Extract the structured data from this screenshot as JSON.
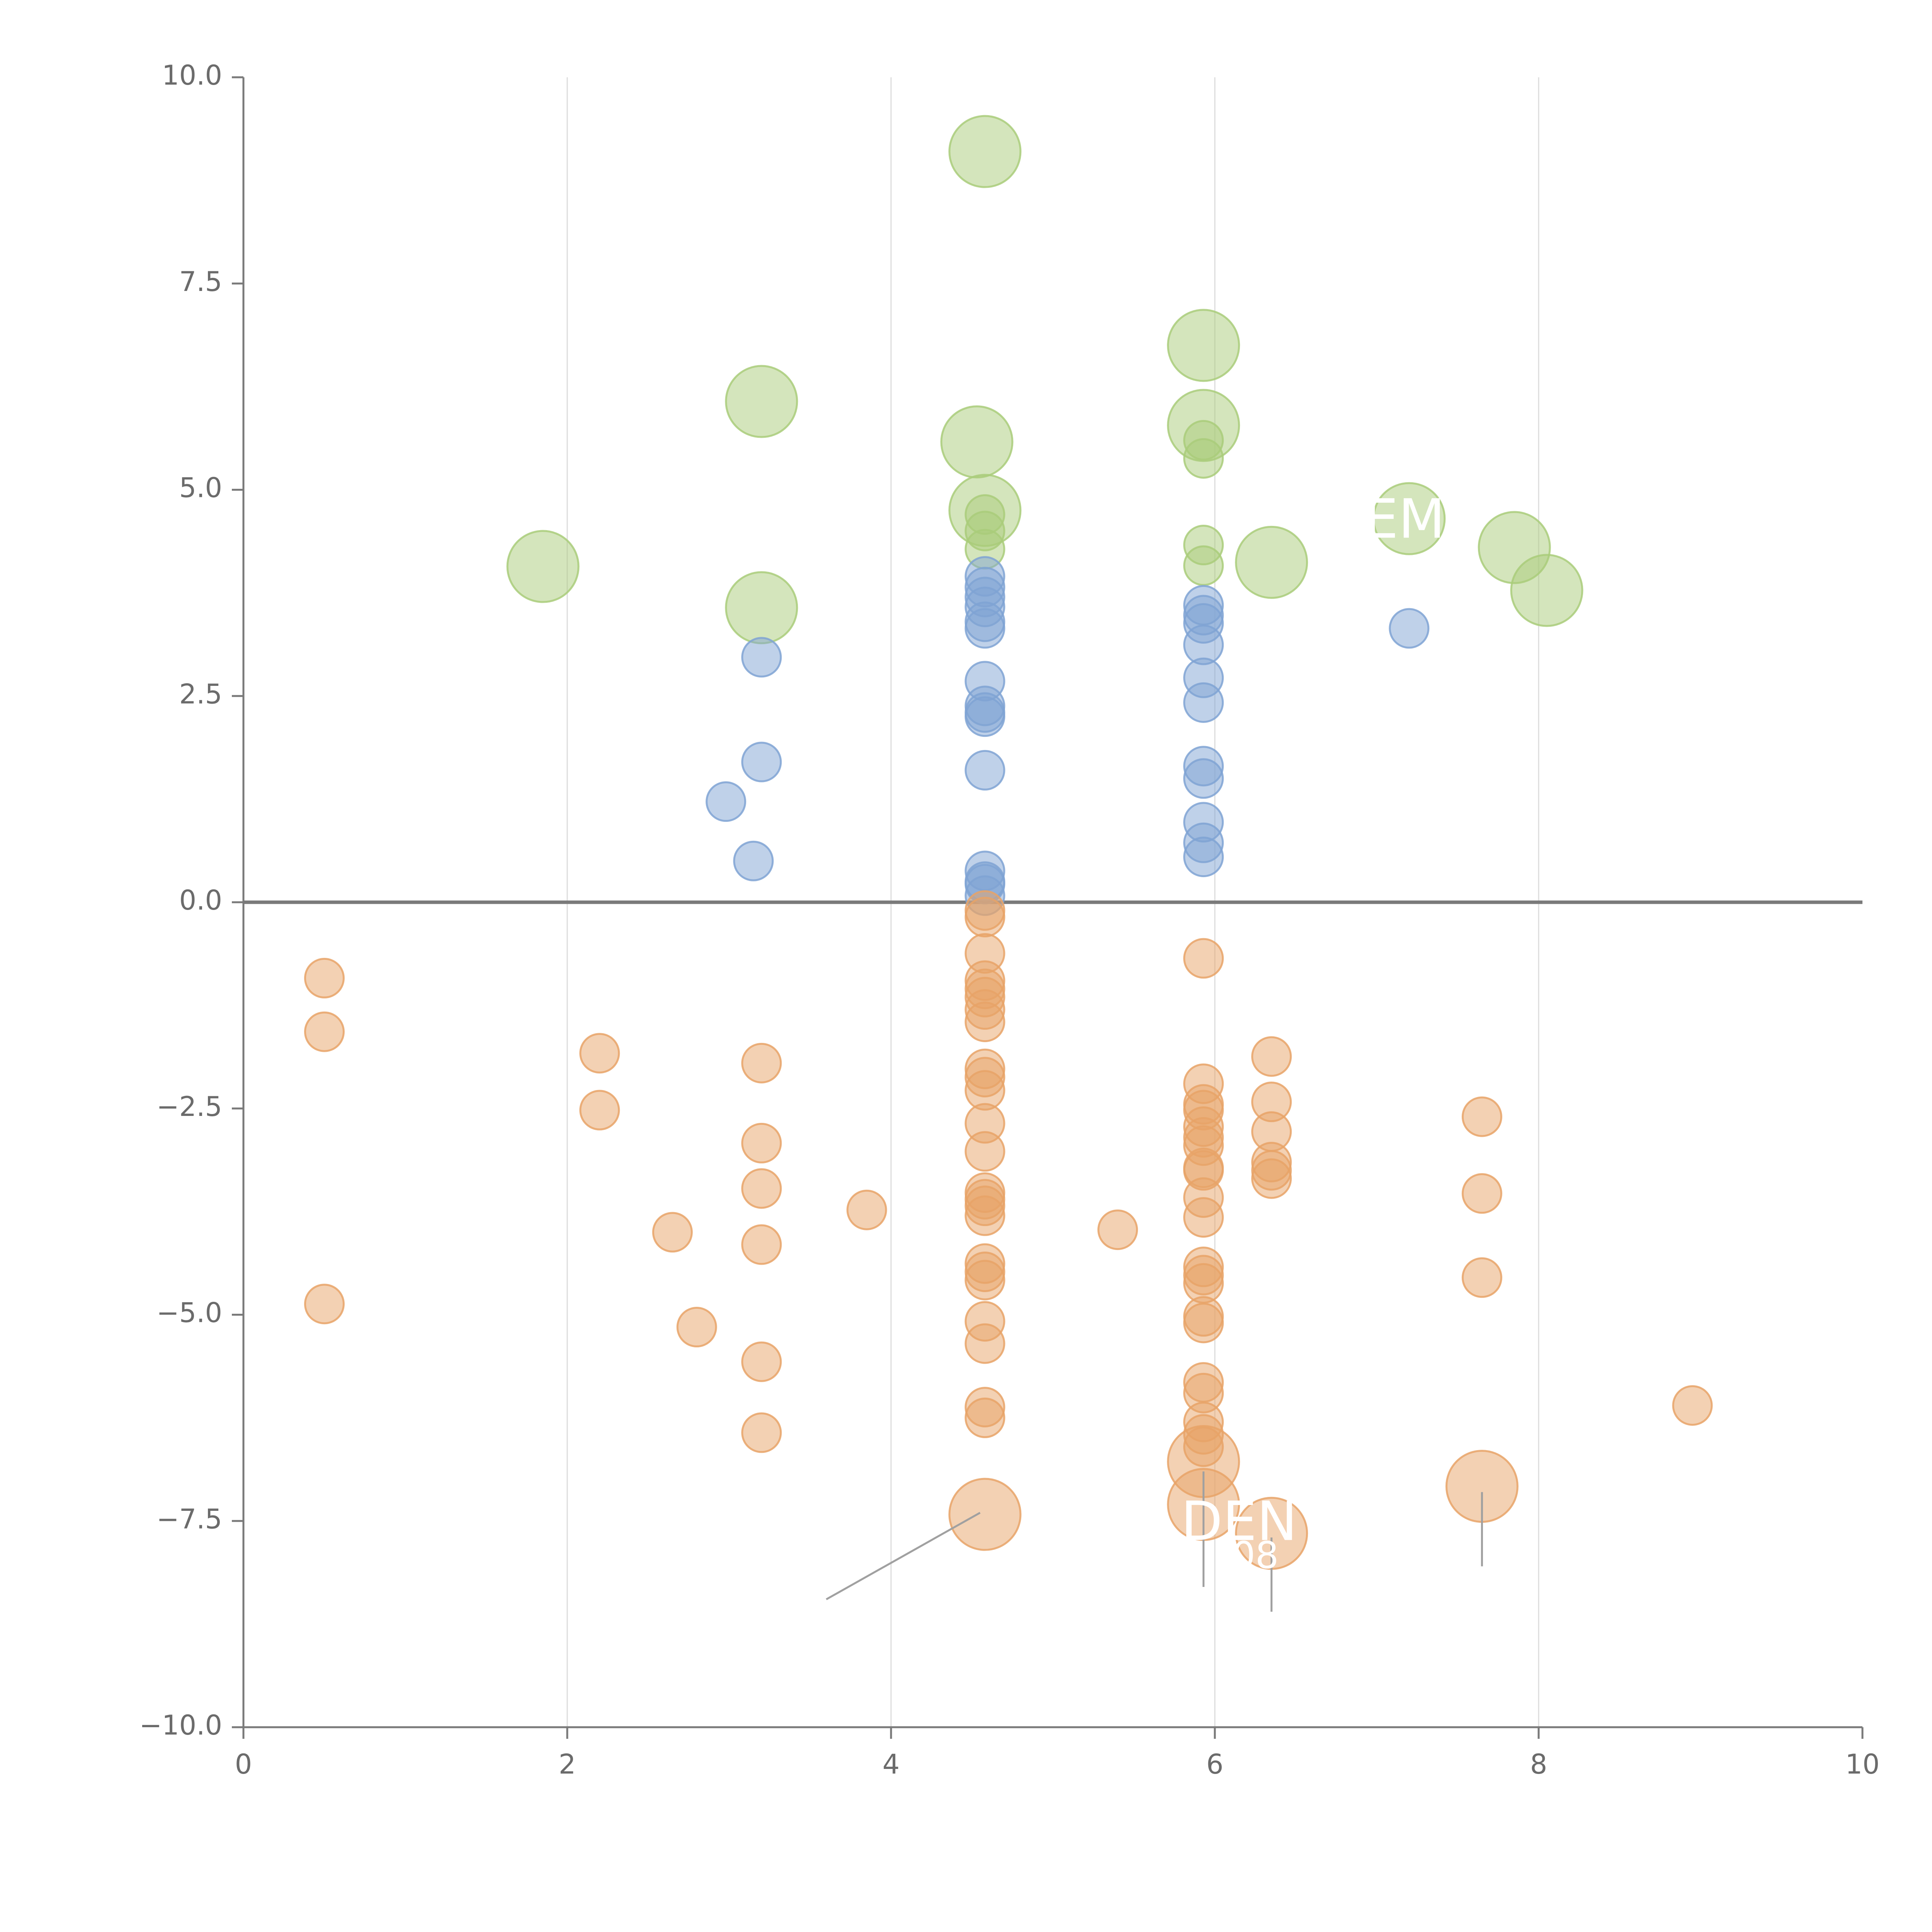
{
  "chart_data": {
    "type": "scatter",
    "title": "",
    "xlabel": "",
    "ylabel": "",
    "xlim": [
      0,
      10
    ],
    "ylim": [
      -10,
      10
    ],
    "x_ticks": [
      "0",
      "2",
      "4",
      "6",
      "8",
      "10"
    ],
    "y_ticks": [
      "10.0",
      "7.5",
      "5.0",
      "2.5",
      "0.0",
      "−2.5",
      "−5.0",
      "−7.5",
      "−10.0"
    ],
    "x_gridlines": [
      2,
      4,
      6,
      8
    ],
    "reference_line_y": 0,
    "colors": {
      "green": "#a9cc7a",
      "blue": "#7fa3d3",
      "orange": "#e8a367",
      "axis": "#7a7a7a",
      "grid": "#dcdcdc"
    },
    "series": [
      {
        "name": "green",
        "color": "#a9cc7a",
        "points": [
          {
            "x": 4.58,
            "y": 9.1,
            "s": "L"
          },
          {
            "x": 5.93,
            "y": 6.75,
            "s": "L"
          },
          {
            "x": 3.2,
            "y": 6.07,
            "s": "L"
          },
          {
            "x": 5.93,
            "y": 5.78,
            "s": "L"
          },
          {
            "x": 4.53,
            "y": 5.58,
            "s": "L"
          },
          {
            "x": 5.93,
            "y": 5.6,
            "s": "S"
          },
          {
            "x": 5.93,
            "y": 5.38,
            "s": "S"
          },
          {
            "x": 4.58,
            "y": 4.75,
            "s": "L"
          },
          {
            "x": 4.58,
            "y": 4.7,
            "s": "S"
          },
          {
            "x": 4.58,
            "y": 4.5,
            "s": "S"
          },
          {
            "x": 4.58,
            "y": 4.28,
            "s": "S"
          },
          {
            "x": 5.93,
            "y": 4.33,
            "s": "S"
          },
          {
            "x": 5.93,
            "y": 4.08,
            "s": "S"
          },
          {
            "x": 7.2,
            "y": 4.65,
            "s": "L"
          },
          {
            "x": 7.85,
            "y": 4.3,
            "s": "L"
          },
          {
            "x": 6.35,
            "y": 4.12,
            "s": "L"
          },
          {
            "x": 1.85,
            "y": 4.07,
            "s": "L"
          },
          {
            "x": 8.05,
            "y": 3.78,
            "s": "L"
          },
          {
            "x": 3.2,
            "y": 3.57,
            "s": "L"
          }
        ]
      },
      {
        "name": "blue",
        "color": "#7fa3d3",
        "points": [
          {
            "x": 4.58,
            "y": 3.95,
            "s": "S"
          },
          {
            "x": 4.58,
            "y": 3.82,
            "s": "S"
          },
          {
            "x": 4.58,
            "y": 3.7,
            "s": "S"
          },
          {
            "x": 4.58,
            "y": 3.58,
            "s": "S"
          },
          {
            "x": 4.58,
            "y": 3.4,
            "s": "S"
          },
          {
            "x": 4.58,
            "y": 3.32,
            "s": "S"
          },
          {
            "x": 5.93,
            "y": 3.6,
            "s": "S"
          },
          {
            "x": 5.93,
            "y": 3.48,
            "s": "S"
          },
          {
            "x": 5.93,
            "y": 3.38,
            "s": "S"
          },
          {
            "x": 5.93,
            "y": 3.12,
            "s": "S"
          },
          {
            "x": 5.93,
            "y": 2.72,
            "s": "S"
          },
          {
            "x": 5.93,
            "y": 2.42,
            "s": "S"
          },
          {
            "x": 7.2,
            "y": 3.32,
            "s": "S"
          },
          {
            "x": 3.2,
            "y": 2.97,
            "s": "S"
          },
          {
            "x": 4.58,
            "y": 2.68,
            "s": "S"
          },
          {
            "x": 4.58,
            "y": 2.38,
            "s": "S"
          },
          {
            "x": 4.58,
            "y": 2.3,
            "s": "S"
          },
          {
            "x": 4.58,
            "y": 2.25,
            "s": "S"
          },
          {
            "x": 3.2,
            "y": 1.7,
            "s": "S"
          },
          {
            "x": 4.58,
            "y": 1.6,
            "s": "S"
          },
          {
            "x": 5.93,
            "y": 1.65,
            "s": "S"
          },
          {
            "x": 5.93,
            "y": 1.5,
            "s": "S"
          },
          {
            "x": 2.98,
            "y": 1.22,
            "s": "S"
          },
          {
            "x": 5.93,
            "y": 0.97,
            "s": "S"
          },
          {
            "x": 5.93,
            "y": 0.72,
            "s": "S"
          },
          {
            "x": 5.93,
            "y": 0.55,
            "s": "S"
          },
          {
            "x": 3.15,
            "y": 0.5,
            "s": "S"
          },
          {
            "x": 4.58,
            "y": 0.38,
            "s": "S"
          },
          {
            "x": 4.58,
            "y": 0.25,
            "s": "S"
          },
          {
            "x": 4.58,
            "y": 0.22,
            "s": "S"
          },
          {
            "x": 4.58,
            "y": 0.08,
            "s": "S"
          }
        ]
      },
      {
        "name": "orange",
        "color": "#e8a367",
        "points": [
          {
            "x": 4.58,
            "y": -0.1,
            "s": "S"
          },
          {
            "x": 4.58,
            "y": -0.18,
            "s": "S"
          },
          {
            "x": 4.58,
            "y": -0.62,
            "s": "S"
          },
          {
            "x": 5.93,
            "y": -0.68,
            "s": "S"
          },
          {
            "x": 0.5,
            "y": -0.92,
            "s": "S"
          },
          {
            "x": 4.58,
            "y": -0.95,
            "s": "S"
          },
          {
            "x": 4.58,
            "y": -1.05,
            "s": "S"
          },
          {
            "x": 4.58,
            "y": -1.15,
            "s": "S"
          },
          {
            "x": 4.58,
            "y": -1.3,
            "s": "S"
          },
          {
            "x": 4.58,
            "y": -1.45,
            "s": "S"
          },
          {
            "x": 0.5,
            "y": -1.57,
            "s": "S"
          },
          {
            "x": 2.2,
            "y": -1.83,
            "s": "S"
          },
          {
            "x": 6.35,
            "y": -1.87,
            "s": "S"
          },
          {
            "x": 3.2,
            "y": -1.95,
            "s": "S"
          },
          {
            "x": 4.58,
            "y": -2.02,
            "s": "S"
          },
          {
            "x": 4.58,
            "y": -2.12,
            "s": "S"
          },
          {
            "x": 4.58,
            "y": -2.28,
            "s": "S"
          },
          {
            "x": 5.93,
            "y": -2.2,
            "s": "S"
          },
          {
            "x": 5.93,
            "y": -2.45,
            "s": "S"
          },
          {
            "x": 5.93,
            "y": -2.52,
            "s": "S"
          },
          {
            "x": 5.93,
            "y": -2.72,
            "s": "S"
          },
          {
            "x": 5.93,
            "y": -2.85,
            "s": "S"
          },
          {
            "x": 5.93,
            "y": -2.95,
            "s": "S"
          },
          {
            "x": 6.35,
            "y": -2.42,
            "s": "S"
          },
          {
            "x": 6.35,
            "y": -2.78,
            "s": "S"
          },
          {
            "x": 2.2,
            "y": -2.52,
            "s": "S"
          },
          {
            "x": 7.65,
            "y": -2.6,
            "s": "S"
          },
          {
            "x": 4.58,
            "y": -2.68,
            "s": "S"
          },
          {
            "x": 3.2,
            "y": -2.92,
            "s": "S"
          },
          {
            "x": 4.58,
            "y": -3.02,
            "s": "S"
          },
          {
            "x": 5.93,
            "y": -3.22,
            "s": "S"
          },
          {
            "x": 5.93,
            "y": -3.25,
            "s": "S"
          },
          {
            "x": 6.35,
            "y": -3.15,
            "s": "S"
          },
          {
            "x": 6.35,
            "y": -3.25,
            "s": "S"
          },
          {
            "x": 6.35,
            "y": -3.35,
            "s": "S"
          },
          {
            "x": 3.2,
            "y": -3.47,
            "s": "S"
          },
          {
            "x": 7.65,
            "y": -3.53,
            "s": "S"
          },
          {
            "x": 4.58,
            "y": -3.52,
            "s": "S"
          },
          {
            "x": 4.58,
            "y": -3.6,
            "s": "S"
          },
          {
            "x": 4.58,
            "y": -3.68,
            "s": "S"
          },
          {
            "x": 4.58,
            "y": -3.8,
            "s": "S"
          },
          {
            "x": 5.93,
            "y": -3.58,
            "s": "S"
          },
          {
            "x": 5.93,
            "y": -3.82,
            "s": "S"
          },
          {
            "x": 3.85,
            "y": -3.73,
            "s": "S"
          },
          {
            "x": 5.4,
            "y": -3.97,
            "s": "S"
          },
          {
            "x": 2.65,
            "y": -4.0,
            "s": "S"
          },
          {
            "x": 3.2,
            "y": -4.15,
            "s": "S"
          },
          {
            "x": 4.58,
            "y": -4.38,
            "s": "S"
          },
          {
            "x": 4.58,
            "y": -4.48,
            "s": "S"
          },
          {
            "x": 4.58,
            "y": -4.58,
            "s": "S"
          },
          {
            "x": 5.93,
            "y": -4.42,
            "s": "S"
          },
          {
            "x": 5.93,
            "y": -4.52,
            "s": "S"
          },
          {
            "x": 5.93,
            "y": -4.62,
            "s": "S"
          },
          {
            "x": 7.65,
            "y": -4.55,
            "s": "S"
          },
          {
            "x": 0.5,
            "y": -4.87,
            "s": "S"
          },
          {
            "x": 5.93,
            "y": -5.02,
            "s": "S"
          },
          {
            "x": 5.93,
            "y": -5.1,
            "s": "S"
          },
          {
            "x": 4.58,
            "y": -5.08,
            "s": "S"
          },
          {
            "x": 2.8,
            "y": -5.15,
            "s": "S"
          },
          {
            "x": 4.58,
            "y": -5.35,
            "s": "S"
          },
          {
            "x": 3.2,
            "y": -5.57,
            "s": "S"
          },
          {
            "x": 5.93,
            "y": -5.82,
            "s": "S"
          },
          {
            "x": 5.93,
            "y": -5.95,
            "s": "S"
          },
          {
            "x": 8.95,
            "y": -6.1,
            "s": "S"
          },
          {
            "x": 4.58,
            "y": -6.12,
            "s": "S"
          },
          {
            "x": 4.58,
            "y": -6.25,
            "s": "S"
          },
          {
            "x": 5.93,
            "y": -6.3,
            "s": "S"
          },
          {
            "x": 5.93,
            "y": -6.45,
            "s": "S"
          },
          {
            "x": 5.93,
            "y": -6.6,
            "s": "S"
          },
          {
            "x": 3.2,
            "y": -6.43,
            "s": "S"
          },
          {
            "x": 5.93,
            "y": -6.78,
            "s": "L"
          },
          {
            "x": 7.65,
            "y": -7.08,
            "s": "L"
          },
          {
            "x": 4.58,
            "y": -7.42,
            "s": "L"
          },
          {
            "x": 5.93,
            "y": -7.3,
            "s": "L"
          },
          {
            "x": 6.35,
            "y": -7.65,
            "s": "L"
          }
        ]
      }
    ],
    "annotations": [
      {
        "text": "UEM",
        "x": 7.05,
        "y": 4.6,
        "size": "large"
      },
      {
        "text": "DEN",
        "x": 6.15,
        "y": -7.55,
        "size": "large"
      },
      {
        "text": "08",
        "x": 6.25,
        "y": -7.95,
        "size": "small"
      }
    ]
  }
}
